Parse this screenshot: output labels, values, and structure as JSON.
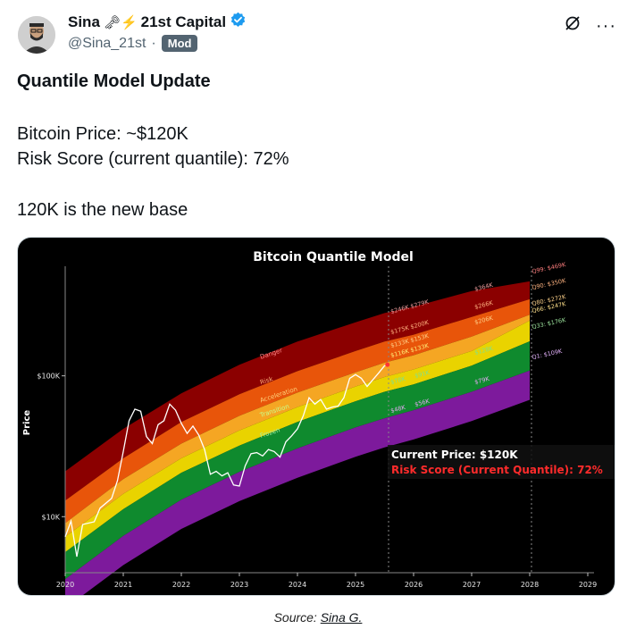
{
  "author": {
    "display_name": "Sina",
    "emoji": "🗝⚡",
    "org": "21st Capital",
    "handle": "@Sina_21st",
    "separator": "·",
    "badge": "Mod",
    "verified_icon": "verified-badge-icon",
    "verified_color": "#1d9bf0"
  },
  "actions": {
    "grok_icon": "grok-icon",
    "more_label": "···"
  },
  "tweet": {
    "title": "Quantile Model Update",
    "line1": "Bitcoin Price: ~$120K",
    "line2": "Risk Score (current quantile): 72%",
    "line3": "120K is the new base"
  },
  "chart_data": {
    "type": "area",
    "title": "Bitcoin Quantile Model",
    "xlabel": "",
    "ylabel": "Price",
    "y_scale": "log",
    "ylim": [
      4000,
      600000
    ],
    "xlim": [
      2020,
      2029
    ],
    "x_ticks": [
      "2020",
      "2021",
      "2022",
      "2023",
      "2024",
      "2025",
      "2026",
      "2027",
      "2028",
      "2029"
    ],
    "y_ticks": [
      {
        "value": 10000,
        "label": "$10K"
      },
      {
        "value": 100000,
        "label": "$100K"
      }
    ],
    "background": "#000000",
    "bands": [
      {
        "name": "Danger",
        "color": "#8b0000",
        "bounds": [
          [
            2020,
            13000,
            21000
          ],
          [
            2025.5,
            246000,
            279000
          ],
          [
            2027,
            364000,
            400000
          ],
          [
            2028,
            350000,
            469000
          ]
        ]
      },
      {
        "name": "Risk",
        "color": "#e8550a",
        "bounds": [
          [
            2020,
            8000,
            13000
          ],
          [
            2025.5,
            175000,
            200000
          ],
          [
            2027,
            266000,
            266000
          ],
          [
            2028,
            272000,
            350000
          ]
        ]
      },
      {
        "name": "Acceleration",
        "color": "#f5a623",
        "bounds": [
          [
            2025.5,
            133000,
            153000
          ],
          [
            2027,
            206000,
            206000
          ],
          [
            2028,
            247000,
            272000
          ]
        ]
      },
      {
        "name": "Transition",
        "color": "#e9d300",
        "bounds": [
          [
            2025.5,
            116000,
            133000
          ],
          [
            2028,
            176000,
            247000
          ]
        ]
      },
      {
        "name": "Frozen",
        "color": "#0f8a2e",
        "bounds": [
          [
            2025.5,
            78000,
            91000
          ],
          [
            2027,
            128000,
            128000
          ],
          [
            2028,
            109000,
            176000
          ]
        ]
      },
      {
        "name": "",
        "color": "#7d1a9c",
        "bounds": [
          [
            2025.5,
            48000,
            56000
          ],
          [
            2027,
            79000,
            79000
          ],
          [
            2028,
            79000,
            109000
          ]
        ]
      }
    ],
    "band_value_labels": [
      {
        "text": "$246K $279K",
        "color": "#f4a0a0"
      },
      {
        "text": "$175K $200K",
        "color": "#ffb380"
      },
      {
        "text": "$133K $153K",
        "color": "#ffd28a"
      },
      {
        "text": "$116K $133K",
        "color": "#fff27a"
      },
      {
        "text": "$78K",
        "color": "#7fe08f"
      },
      {
        "text": "$91K",
        "color": "#7fe08f"
      },
      {
        "text": "$48K",
        "color": "#e6a9f5"
      },
      {
        "text": "$56K",
        "color": "#e6a9f5"
      },
      {
        "text": "$364K",
        "color": "#f4a0a0"
      },
      {
        "text": "$266K",
        "color": "#ffb380"
      },
      {
        "text": "$206K",
        "color": "#ffd28a"
      },
      {
        "text": "$128K",
        "color": "#7fe08f"
      },
      {
        "text": "$79K",
        "color": "#e6a9f5"
      }
    ],
    "quantile_labels": [
      {
        "text": "Q99: $469K",
        "color": "#ff7f7f"
      },
      {
        "text": "Q90: $350K",
        "color": "#ffb380"
      },
      {
        "text": "Q80: $272K",
        "color": "#ffd28a"
      },
      {
        "text": "Q66: $247K",
        "color": "#ffe08a"
      },
      {
        "text": "Q33: $176K",
        "color": "#9fe89f"
      },
      {
        "text": "Q1: $109K",
        "color": "#e6b3ff"
      }
    ],
    "price_series": {
      "name": "",
      "color": "#ffffff",
      "points": [
        [
          2020.0,
          7200
        ],
        [
          2020.1,
          9300
        ],
        [
          2020.2,
          5200
        ],
        [
          2020.3,
          8800
        ],
        [
          2020.5,
          9200
        ],
        [
          2020.6,
          11500
        ],
        [
          2020.8,
          13500
        ],
        [
          2020.9,
          18000
        ],
        [
          2021.0,
          29000
        ],
        [
          2021.1,
          48000
        ],
        [
          2021.2,
          58000
        ],
        [
          2021.3,
          56000
        ],
        [
          2021.4,
          37000
        ],
        [
          2021.5,
          33000
        ],
        [
          2021.6,
          45000
        ],
        [
          2021.7,
          48000
        ],
        [
          2021.8,
          63000
        ],
        [
          2021.9,
          57000
        ],
        [
          2022.0,
          46000
        ],
        [
          2022.1,
          39000
        ],
        [
          2022.2,
          44000
        ],
        [
          2022.3,
          38000
        ],
        [
          2022.4,
          30000
        ],
        [
          2022.5,
          20000
        ],
        [
          2022.6,
          21000
        ],
        [
          2022.7,
          19500
        ],
        [
          2022.8,
          20500
        ],
        [
          2022.9,
          16800
        ],
        [
          2023.0,
          16500
        ],
        [
          2023.1,
          23000
        ],
        [
          2023.2,
          28000
        ],
        [
          2023.3,
          28500
        ],
        [
          2023.4,
          27000
        ],
        [
          2023.5,
          30000
        ],
        [
          2023.6,
          29000
        ],
        [
          2023.7,
          26500
        ],
        [
          2023.8,
          34000
        ],
        [
          2023.9,
          37500
        ],
        [
          2024.0,
          42000
        ],
        [
          2024.1,
          52000
        ],
        [
          2024.2,
          70000
        ],
        [
          2024.3,
          63000
        ],
        [
          2024.4,
          68000
        ],
        [
          2024.5,
          58000
        ],
        [
          2024.6,
          60000
        ],
        [
          2024.7,
          61000
        ],
        [
          2024.8,
          70000
        ],
        [
          2024.9,
          96000
        ],
        [
          2025.0,
          102000
        ],
        [
          2025.1,
          96000
        ],
        [
          2025.2,
          84000
        ],
        [
          2025.3,
          94000
        ],
        [
          2025.4,
          105000
        ],
        [
          2025.5,
          118000
        ],
        [
          2025.55,
          120000
        ]
      ]
    },
    "current_price_text": "Current Price: $120K",
    "risk_score_text": "Risk Score (Current Quantile): 72%",
    "grid": false,
    "legend": "none"
  },
  "caption": {
    "prefix": "Source:",
    "link": "Sina G."
  }
}
